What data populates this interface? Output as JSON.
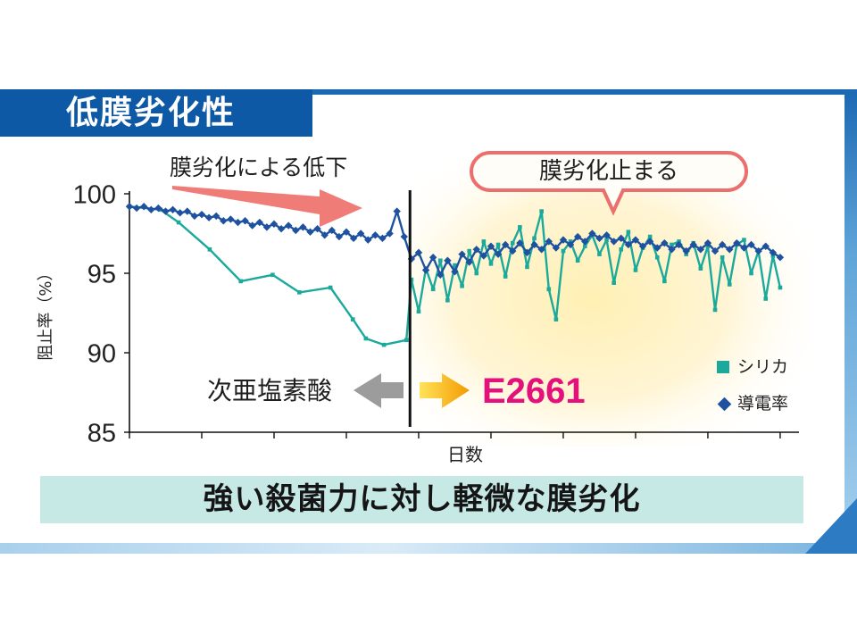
{
  "panel": {
    "title": "低膜劣化性",
    "summary": "強い殺菌力に対し軽微な膜劣化"
  },
  "colors": {
    "frame_blue": "#1b68b3",
    "title_bg": "#0d59a6",
    "summary_bg": "#c6e9e6",
    "decline_arrow": "#f07c78",
    "callout_border": "#ea6f6d",
    "after_treatment_text": "#e4117d",
    "before_treatment_arrow": "#9c9c9c"
  },
  "chart_data": {
    "type": "line",
    "xlabel": "日数",
    "ylabel": "阻止率（%）",
    "ylim": [
      85,
      100
    ],
    "yticks": [
      100,
      95,
      90,
      85
    ],
    "xlim": [
      0,
      9.26
    ],
    "xticks": [
      0,
      1,
      2,
      3,
      4,
      5,
      6,
      7,
      8,
      9
    ],
    "grid": false,
    "legend": "bottom-right",
    "reference_line": {
      "x": 3.88
    },
    "annotations": {
      "decline": "膜劣化による低下",
      "plateau": "膜劣化止まる",
      "before_treatment": "次亜塩素酸",
      "after_treatment": "E2661"
    },
    "series": [
      {
        "name": "シリカ",
        "color": "#1aa99b",
        "marker": "square",
        "points": [
          [
            0,
            99.2
          ],
          [
            0.43,
            99.0
          ],
          [
            0.68,
            98.2
          ],
          [
            1.11,
            96.5
          ],
          [
            1.54,
            94.5
          ],
          [
            1.98,
            94.9
          ],
          [
            2.35,
            93.8
          ],
          [
            2.78,
            94.1
          ],
          [
            3.09,
            92.1
          ],
          [
            3.27,
            90.9
          ],
          [
            3.52,
            90.5
          ],
          [
            3.83,
            90.8
          ],
          [
            3.9,
            94.6
          ],
          [
            4.0,
            92.6
          ],
          [
            4.1,
            95.3
          ],
          [
            4.2,
            94.0
          ],
          [
            4.3,
            95.8
          ],
          [
            4.4,
            93.3
          ],
          [
            4.5,
            95.5
          ],
          [
            4.6,
            94.2
          ],
          [
            4.7,
            96.4
          ],
          [
            4.8,
            95.0
          ],
          [
            4.9,
            97.0
          ],
          [
            5.0,
            95.6
          ],
          [
            5.1,
            96.8
          ],
          [
            5.2,
            94.8
          ],
          [
            5.3,
            96.9
          ],
          [
            5.4,
            97.9
          ],
          [
            5.5,
            95.4
          ],
          [
            5.6,
            97.2
          ],
          [
            5.7,
            98.9
          ],
          [
            5.8,
            94.0
          ],
          [
            5.9,
            92.1
          ],
          [
            6.0,
            96.4
          ],
          [
            6.1,
            97.0
          ],
          [
            6.2,
            95.8
          ],
          [
            6.3,
            96.7
          ],
          [
            6.4,
            97.4
          ],
          [
            6.5,
            96.2
          ],
          [
            6.6,
            97.1
          ],
          [
            6.7,
            94.4
          ],
          [
            6.8,
            96.5
          ],
          [
            6.9,
            97.6
          ],
          [
            7.0,
            95.2
          ],
          [
            7.1,
            96.6
          ],
          [
            7.2,
            97.3
          ],
          [
            7.3,
            96.0
          ],
          [
            7.4,
            94.5
          ],
          [
            7.5,
            96.8
          ],
          [
            7.6,
            97.0
          ],
          [
            7.7,
            96.2
          ],
          [
            7.8,
            96.9
          ],
          [
            7.9,
            95.3
          ],
          [
            8.0,
            96.7
          ],
          [
            8.1,
            92.7
          ],
          [
            8.2,
            96.0
          ],
          [
            8.3,
            94.3
          ],
          [
            8.4,
            96.8
          ],
          [
            8.5,
            97.1
          ],
          [
            8.6,
            95.0
          ],
          [
            8.7,
            96.4
          ],
          [
            8.8,
            93.4
          ],
          [
            8.9,
            96.1
          ],
          [
            9.0,
            94.1
          ]
        ]
      },
      {
        "name": "導電率",
        "color": "#1e519f",
        "marker": "diamond",
        "points": [
          [
            0,
            99.2
          ],
          [
            0.1,
            99.1
          ],
          [
            0.2,
            99.2
          ],
          [
            0.3,
            99.0
          ],
          [
            0.4,
            99.1
          ],
          [
            0.5,
            98.9
          ],
          [
            0.6,
            99.0
          ],
          [
            0.7,
            98.8
          ],
          [
            0.8,
            98.9
          ],
          [
            0.9,
            98.6
          ],
          [
            1.0,
            98.7
          ],
          [
            1.1,
            98.5
          ],
          [
            1.2,
            98.6
          ],
          [
            1.3,
            98.3
          ],
          [
            1.4,
            98.4
          ],
          [
            1.5,
            98.2
          ],
          [
            1.6,
            98.3
          ],
          [
            1.7,
            98.0
          ],
          [
            1.8,
            98.2
          ],
          [
            1.9,
            97.9
          ],
          [
            2.0,
            98.1
          ],
          [
            2.1,
            97.8
          ],
          [
            2.2,
            98.0
          ],
          [
            2.3,
            97.7
          ],
          [
            2.4,
            97.9
          ],
          [
            2.5,
            97.6
          ],
          [
            2.6,
            97.8
          ],
          [
            2.7,
            97.4
          ],
          [
            2.8,
            97.7
          ],
          [
            2.9,
            97.3
          ],
          [
            3.0,
            97.6
          ],
          [
            3.1,
            97.2
          ],
          [
            3.2,
            97.5
          ],
          [
            3.3,
            97.1
          ],
          [
            3.4,
            97.4
          ],
          [
            3.5,
            97.2
          ],
          [
            3.6,
            97.5
          ],
          [
            3.7,
            98.9
          ],
          [
            3.8,
            97.3
          ],
          [
            3.9,
            95.9
          ],
          [
            4.0,
            96.3
          ],
          [
            4.1,
            95.2
          ],
          [
            4.2,
            96.0
          ],
          [
            4.3,
            94.9
          ],
          [
            4.4,
            95.8
          ],
          [
            4.5,
            95.1
          ],
          [
            4.6,
            96.2
          ],
          [
            4.7,
            95.7
          ],
          [
            4.8,
            96.5
          ],
          [
            4.9,
            96.1
          ],
          [
            5.0,
            96.7
          ],
          [
            5.1,
            96.2
          ],
          [
            5.2,
            96.8
          ],
          [
            5.3,
            96.4
          ],
          [
            5.4,
            96.9
          ],
          [
            5.5,
            96.3
          ],
          [
            5.6,
            96.8
          ],
          [
            5.7,
            96.5
          ],
          [
            5.8,
            97.0
          ],
          [
            5.9,
            96.6
          ],
          [
            6.0,
            97.1
          ],
          [
            6.1,
            96.8
          ],
          [
            6.2,
            97.3
          ],
          [
            6.3,
            97.0
          ],
          [
            6.4,
            97.5
          ],
          [
            6.5,
            97.2
          ],
          [
            6.6,
            97.4
          ],
          [
            6.7,
            97.0
          ],
          [
            6.8,
            97.2
          ],
          [
            6.9,
            96.8
          ],
          [
            7.0,
            97.1
          ],
          [
            7.1,
            96.7
          ],
          [
            7.2,
            97.0
          ],
          [
            7.3,
            96.6
          ],
          [
            7.4,
            96.9
          ],
          [
            7.5,
            96.5
          ],
          [
            7.6,
            96.8
          ],
          [
            7.7,
            96.4
          ],
          [
            7.8,
            96.8
          ],
          [
            7.9,
            96.5
          ],
          [
            8.0,
            96.9
          ],
          [
            8.1,
            96.4
          ],
          [
            8.2,
            96.8
          ],
          [
            8.3,
            96.5
          ],
          [
            8.4,
            96.9
          ],
          [
            8.5,
            96.6
          ],
          [
            8.6,
            96.8
          ],
          [
            8.7,
            96.4
          ],
          [
            8.8,
            96.7
          ],
          [
            8.9,
            96.3
          ],
          [
            9.0,
            96.0
          ]
        ]
      }
    ]
  }
}
